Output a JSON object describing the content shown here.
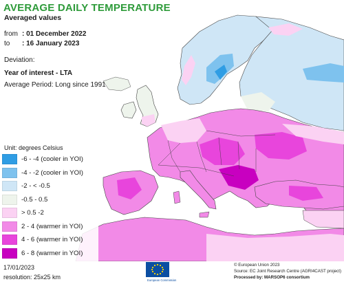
{
  "header": {
    "title": "AVERAGE DAILY TEMPERATURE",
    "subtitle": "Averaged values",
    "from_label": "from",
    "from_value": ": 01 December 2022",
    "to_label": "to",
    "to_value": ": 16 January 2023",
    "deviation_label": "Deviation:",
    "deviation_value": "Year of interest - LTA",
    "average_period": "Average Period: Long since 1991"
  },
  "legend": {
    "unit": "Unit: degrees Celsius",
    "items": [
      {
        "label": "-6 - -4 (cooler in YOI)",
        "color": "#2f9de4"
      },
      {
        "label": "-4 - -2 (cooler in YOI)",
        "color": "#7ec2ee"
      },
      {
        "label": "-2 - < -0.5",
        "color": "#cfe6f6"
      },
      {
        "label": "-0.5 - 0.5",
        "color": "#eef4ec"
      },
      {
        "label": "> 0.5 -2",
        "color": "#fbd2f3"
      },
      {
        "label": "2 - 4 (warmer in YOI)",
        "color": "#f28ae7"
      },
      {
        "label": "4 - 6 (warmer in YOI)",
        "color": "#e845dc"
      },
      {
        "label": "6 - 8 (warmer in YOI)",
        "color": "#c800c0"
      }
    ]
  },
  "footer": {
    "date": "17/01/2023",
    "resolution": "resolution: 25x25 km",
    "logo_caption": "European Commission",
    "credit_1": "© European Union 2023",
    "credit_2": "Source: EC Joint Research Centre (AGRI4CAST project)",
    "credit_3": "Processed by: MARSOP6 consortium"
  },
  "colors": {
    "sea": "#ffffff",
    "title_green": "#2e9b3a",
    "border": "#2a2a2a",
    "nodata": "#f6f6f6"
  }
}
